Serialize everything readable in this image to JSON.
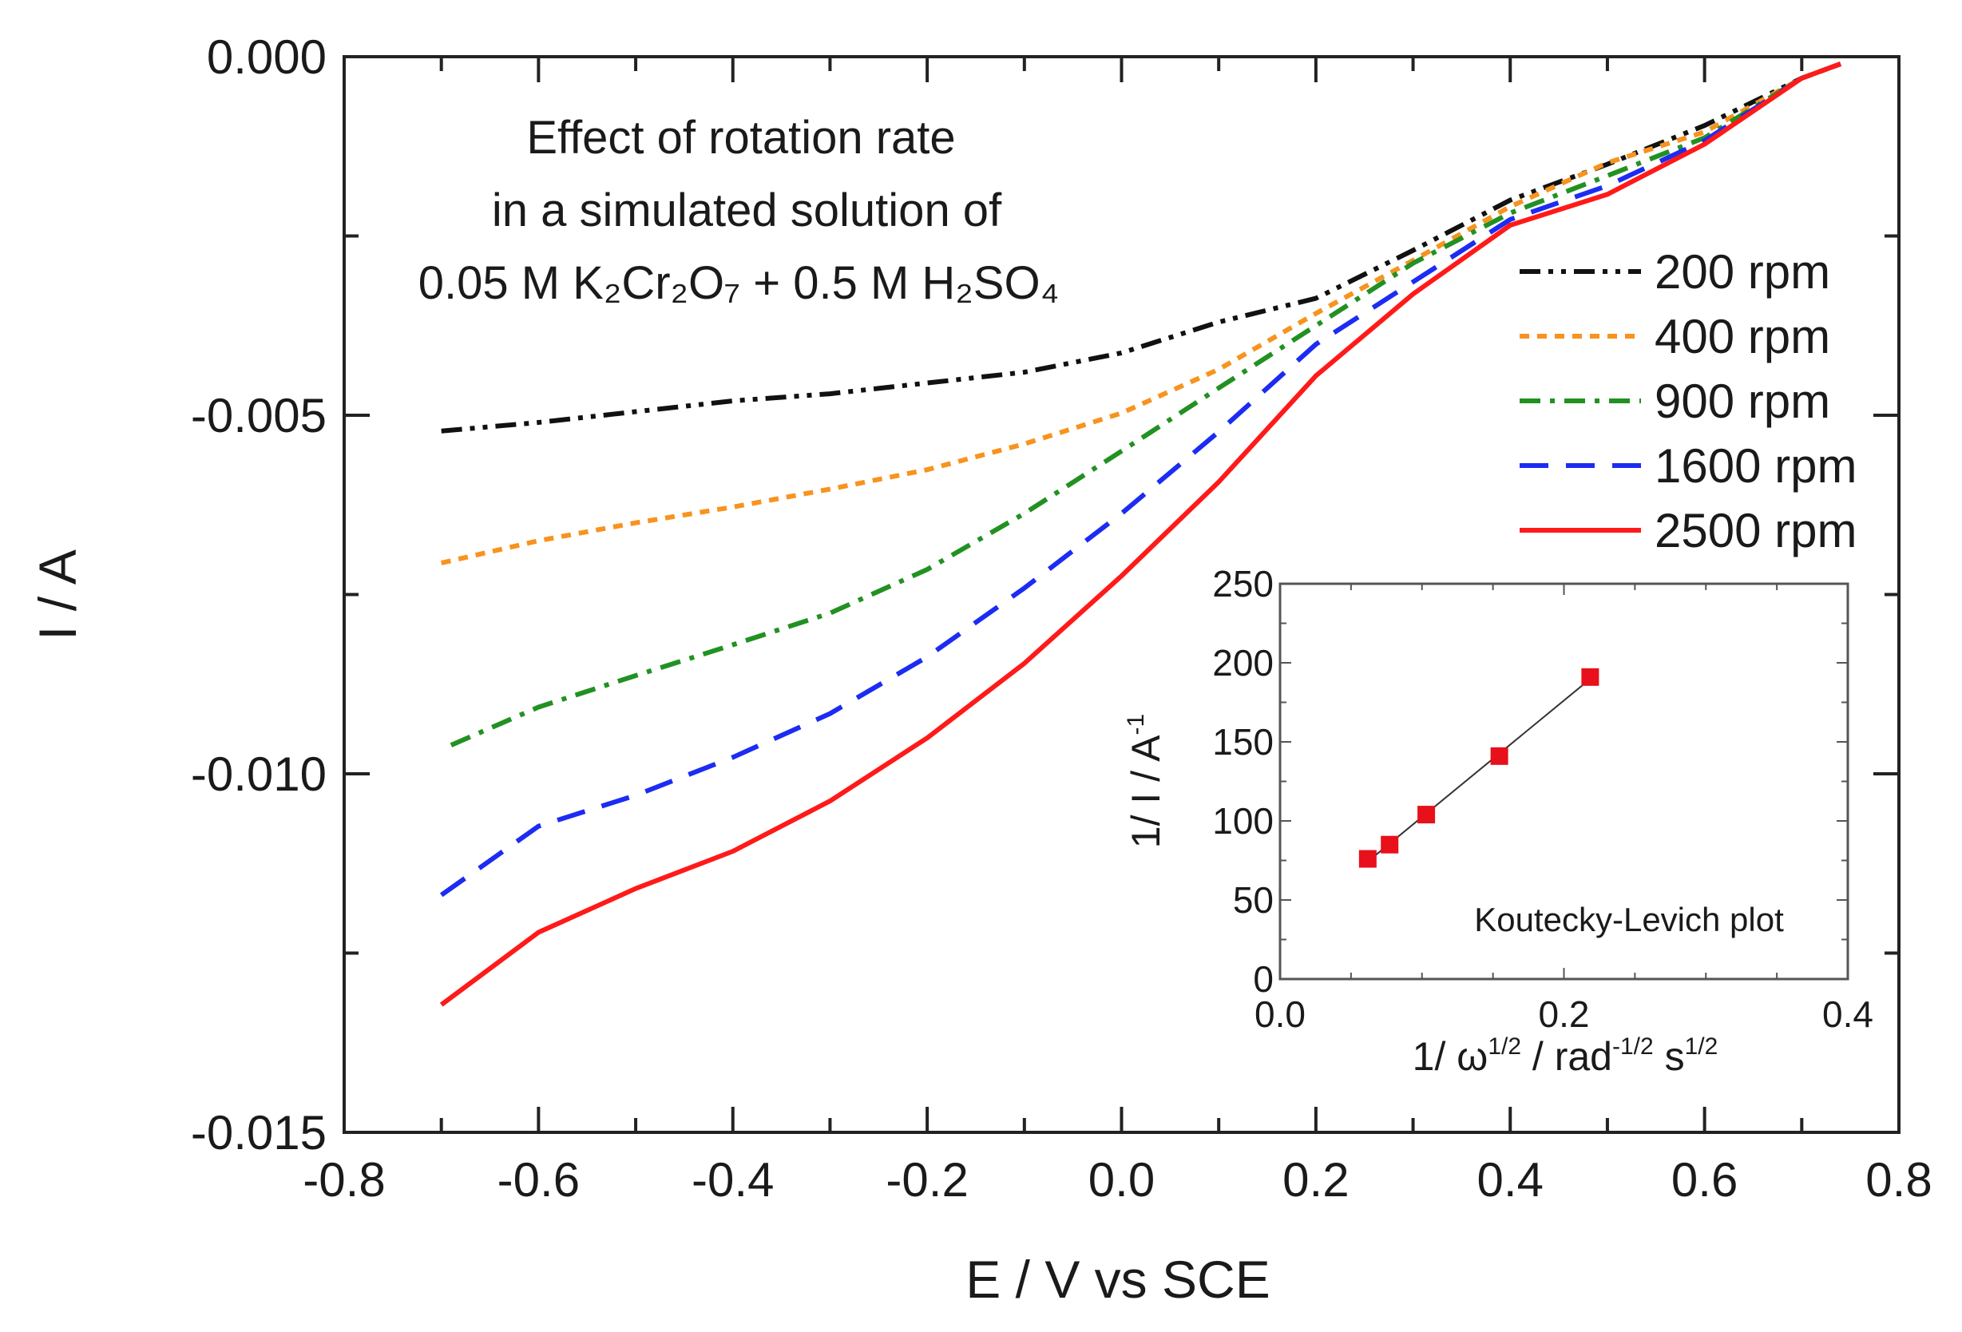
{
  "chart_data": [
    {
      "type": "line",
      "title": "",
      "annotation": [
        "Effect of rotation rate",
        "in a simulated solution of",
        "0.05 M K₂Cr₂O₇ + 0.5 M H₂SO₄"
      ],
      "xlabel": "E / V vs SCE",
      "ylabel": "I / A",
      "xlim": [
        -0.8,
        0.8
      ],
      "ylim": [
        -0.015,
        0.0
      ],
      "xticks": [
        -0.8,
        -0.6,
        -0.4,
        -0.2,
        0.0,
        0.2,
        0.4,
        0.6,
        0.8
      ],
      "xtick_labels": [
        "-0.8",
        "-0.6",
        "-0.4",
        "-0.2",
        "0.0",
        "0.2",
        "0.4",
        "0.6",
        "0.8"
      ],
      "yticks": [
        0.0,
        -0.005,
        -0.01,
        -0.015
      ],
      "ytick_labels": [
        "0.000",
        "-0.005",
        "-0.010",
        "-0.015"
      ],
      "grid": false,
      "legend_position": "right",
      "series": [
        {
          "name": "200 rpm",
          "color": "#111111",
          "style": "dash-dot-dot",
          "x": [
            -0.7,
            -0.6,
            -0.5,
            -0.4,
            -0.3,
            -0.2,
            -0.1,
            0.0,
            0.1,
            0.2,
            0.3,
            0.4,
            0.5,
            0.6,
            0.7,
            0.74
          ],
          "y": [
            -0.00522,
            -0.0051,
            -0.00495,
            -0.0048,
            -0.0047,
            -0.00455,
            -0.0044,
            -0.00413,
            -0.0037,
            -0.00337,
            -0.0027,
            -0.002,
            -0.0015,
            -0.00096,
            -0.0003,
            -0.0001
          ]
        },
        {
          "name": "400 rpm",
          "color": "#f7931e",
          "style": "dot",
          "x": [
            -0.7,
            -0.6,
            -0.5,
            -0.4,
            -0.3,
            -0.2,
            -0.1,
            0.0,
            0.1,
            0.2,
            0.3,
            0.4,
            0.5,
            0.6,
            0.7,
            0.74
          ],
          "y": [
            -0.00706,
            -0.00675,
            -0.0065,
            -0.00628,
            -0.00603,
            -0.00576,
            -0.0054,
            -0.00497,
            -0.00436,
            -0.00358,
            -0.00284,
            -0.00209,
            -0.00148,
            -0.00105,
            -0.0003,
            -0.0001
          ]
        },
        {
          "name": "900 rpm",
          "color": "#229122",
          "style": "dash-dot",
          "x": [
            -0.69,
            -0.6,
            -0.5,
            -0.4,
            -0.3,
            -0.2,
            -0.1,
            0.0,
            0.1,
            0.2,
            0.3,
            0.4,
            0.5,
            0.6,
            0.7,
            0.74
          ],
          "y": [
            -0.0096,
            -0.00907,
            -0.00863,
            -0.0082,
            -0.00776,
            -0.00715,
            -0.00637,
            -0.0055,
            -0.00462,
            -0.00375,
            -0.00288,
            -0.00218,
            -0.00166,
            -0.00113,
            -0.0003,
            -0.0001
          ]
        },
        {
          "name": "1600 rpm",
          "color": "#1c2cf2",
          "style": "dash",
          "x": [
            -0.7,
            -0.6,
            -0.5,
            -0.4,
            -0.3,
            -0.2,
            -0.1,
            0.0,
            0.1,
            0.2,
            0.3,
            0.4,
            0.5,
            0.6,
            0.7,
            0.74
          ],
          "y": [
            -0.01169,
            -0.01073,
            -0.0103,
            -0.00977,
            -0.00916,
            -0.00837,
            -0.00741,
            -0.00637,
            -0.00523,
            -0.00401,
            -0.00314,
            -0.00227,
            -0.0018,
            -0.00117,
            -0.0003,
            -0.0001
          ]
        },
        {
          "name": "2500 rpm",
          "color": "#ff1a1a",
          "style": "solid",
          "x": [
            -0.7,
            -0.6,
            -0.5,
            -0.4,
            -0.3,
            -0.2,
            -0.1,
            0.0,
            0.1,
            0.2,
            0.3,
            0.4,
            0.5,
            0.6,
            0.7,
            0.74
          ],
          "y": [
            -0.01322,
            -0.01221,
            -0.0116,
            -0.01108,
            -0.01038,
            -0.0095,
            -0.00846,
            -0.00724,
            -0.00593,
            -0.00445,
            -0.00331,
            -0.00235,
            -0.00192,
            -0.00122,
            -0.0003,
            -0.0001
          ]
        }
      ]
    },
    {
      "type": "scatter",
      "title": "Koutecky-Levich plot",
      "xlabel_parts": [
        {
          "t": "1/ ω"
        },
        {
          "t": "1/2",
          "sup": true
        },
        {
          "t": " / rad"
        },
        {
          "t": "-1/2",
          "sup": true
        },
        {
          "t": " s"
        },
        {
          "t": "1/2",
          "sup": true
        }
      ],
      "ylabel_parts": [
        {
          "t": "1/ I / A"
        },
        {
          "t": "-1",
          "sup": true
        }
      ],
      "xlim": [
        0.0,
        0.4
      ],
      "ylim": [
        0,
        250
      ],
      "xticks": [
        0.0,
        0.2,
        0.4
      ],
      "xtick_labels": [
        "0.0",
        "0.2",
        "0.4"
      ],
      "yticks": [
        0,
        50,
        100,
        150,
        200,
        250
      ],
      "ytick_labels": [
        "0",
        "50",
        "100",
        "150",
        "200",
        "250"
      ],
      "marker_color": "#e8101a",
      "fit_line": true,
      "x": [
        0.0618,
        0.0772,
        0.103,
        0.1545,
        0.2185
      ],
      "y": [
        76,
        85,
        104,
        141,
        191
      ]
    }
  ]
}
